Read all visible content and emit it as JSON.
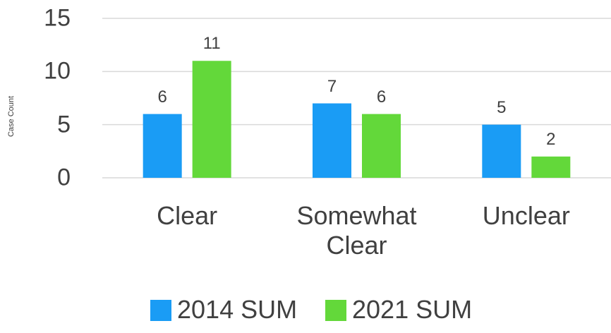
{
  "chart_data": {
    "type": "bar",
    "y_label": "Case Count",
    "categories": [
      "Clear",
      "Somewhat Clear",
      "Unclear"
    ],
    "series": [
      {
        "name": "2014 SUM",
        "color": "#1a9cf5",
        "values": [
          6,
          7,
          5
        ]
      },
      {
        "name": "2021 SUM",
        "color": "#63d83a",
        "values": [
          11,
          6,
          2
        ]
      }
    ],
    "ylim": [
      0,
      15
    ],
    "yticks": [
      0,
      5,
      10,
      15
    ],
    "grid": true,
    "legend": "bottom"
  }
}
